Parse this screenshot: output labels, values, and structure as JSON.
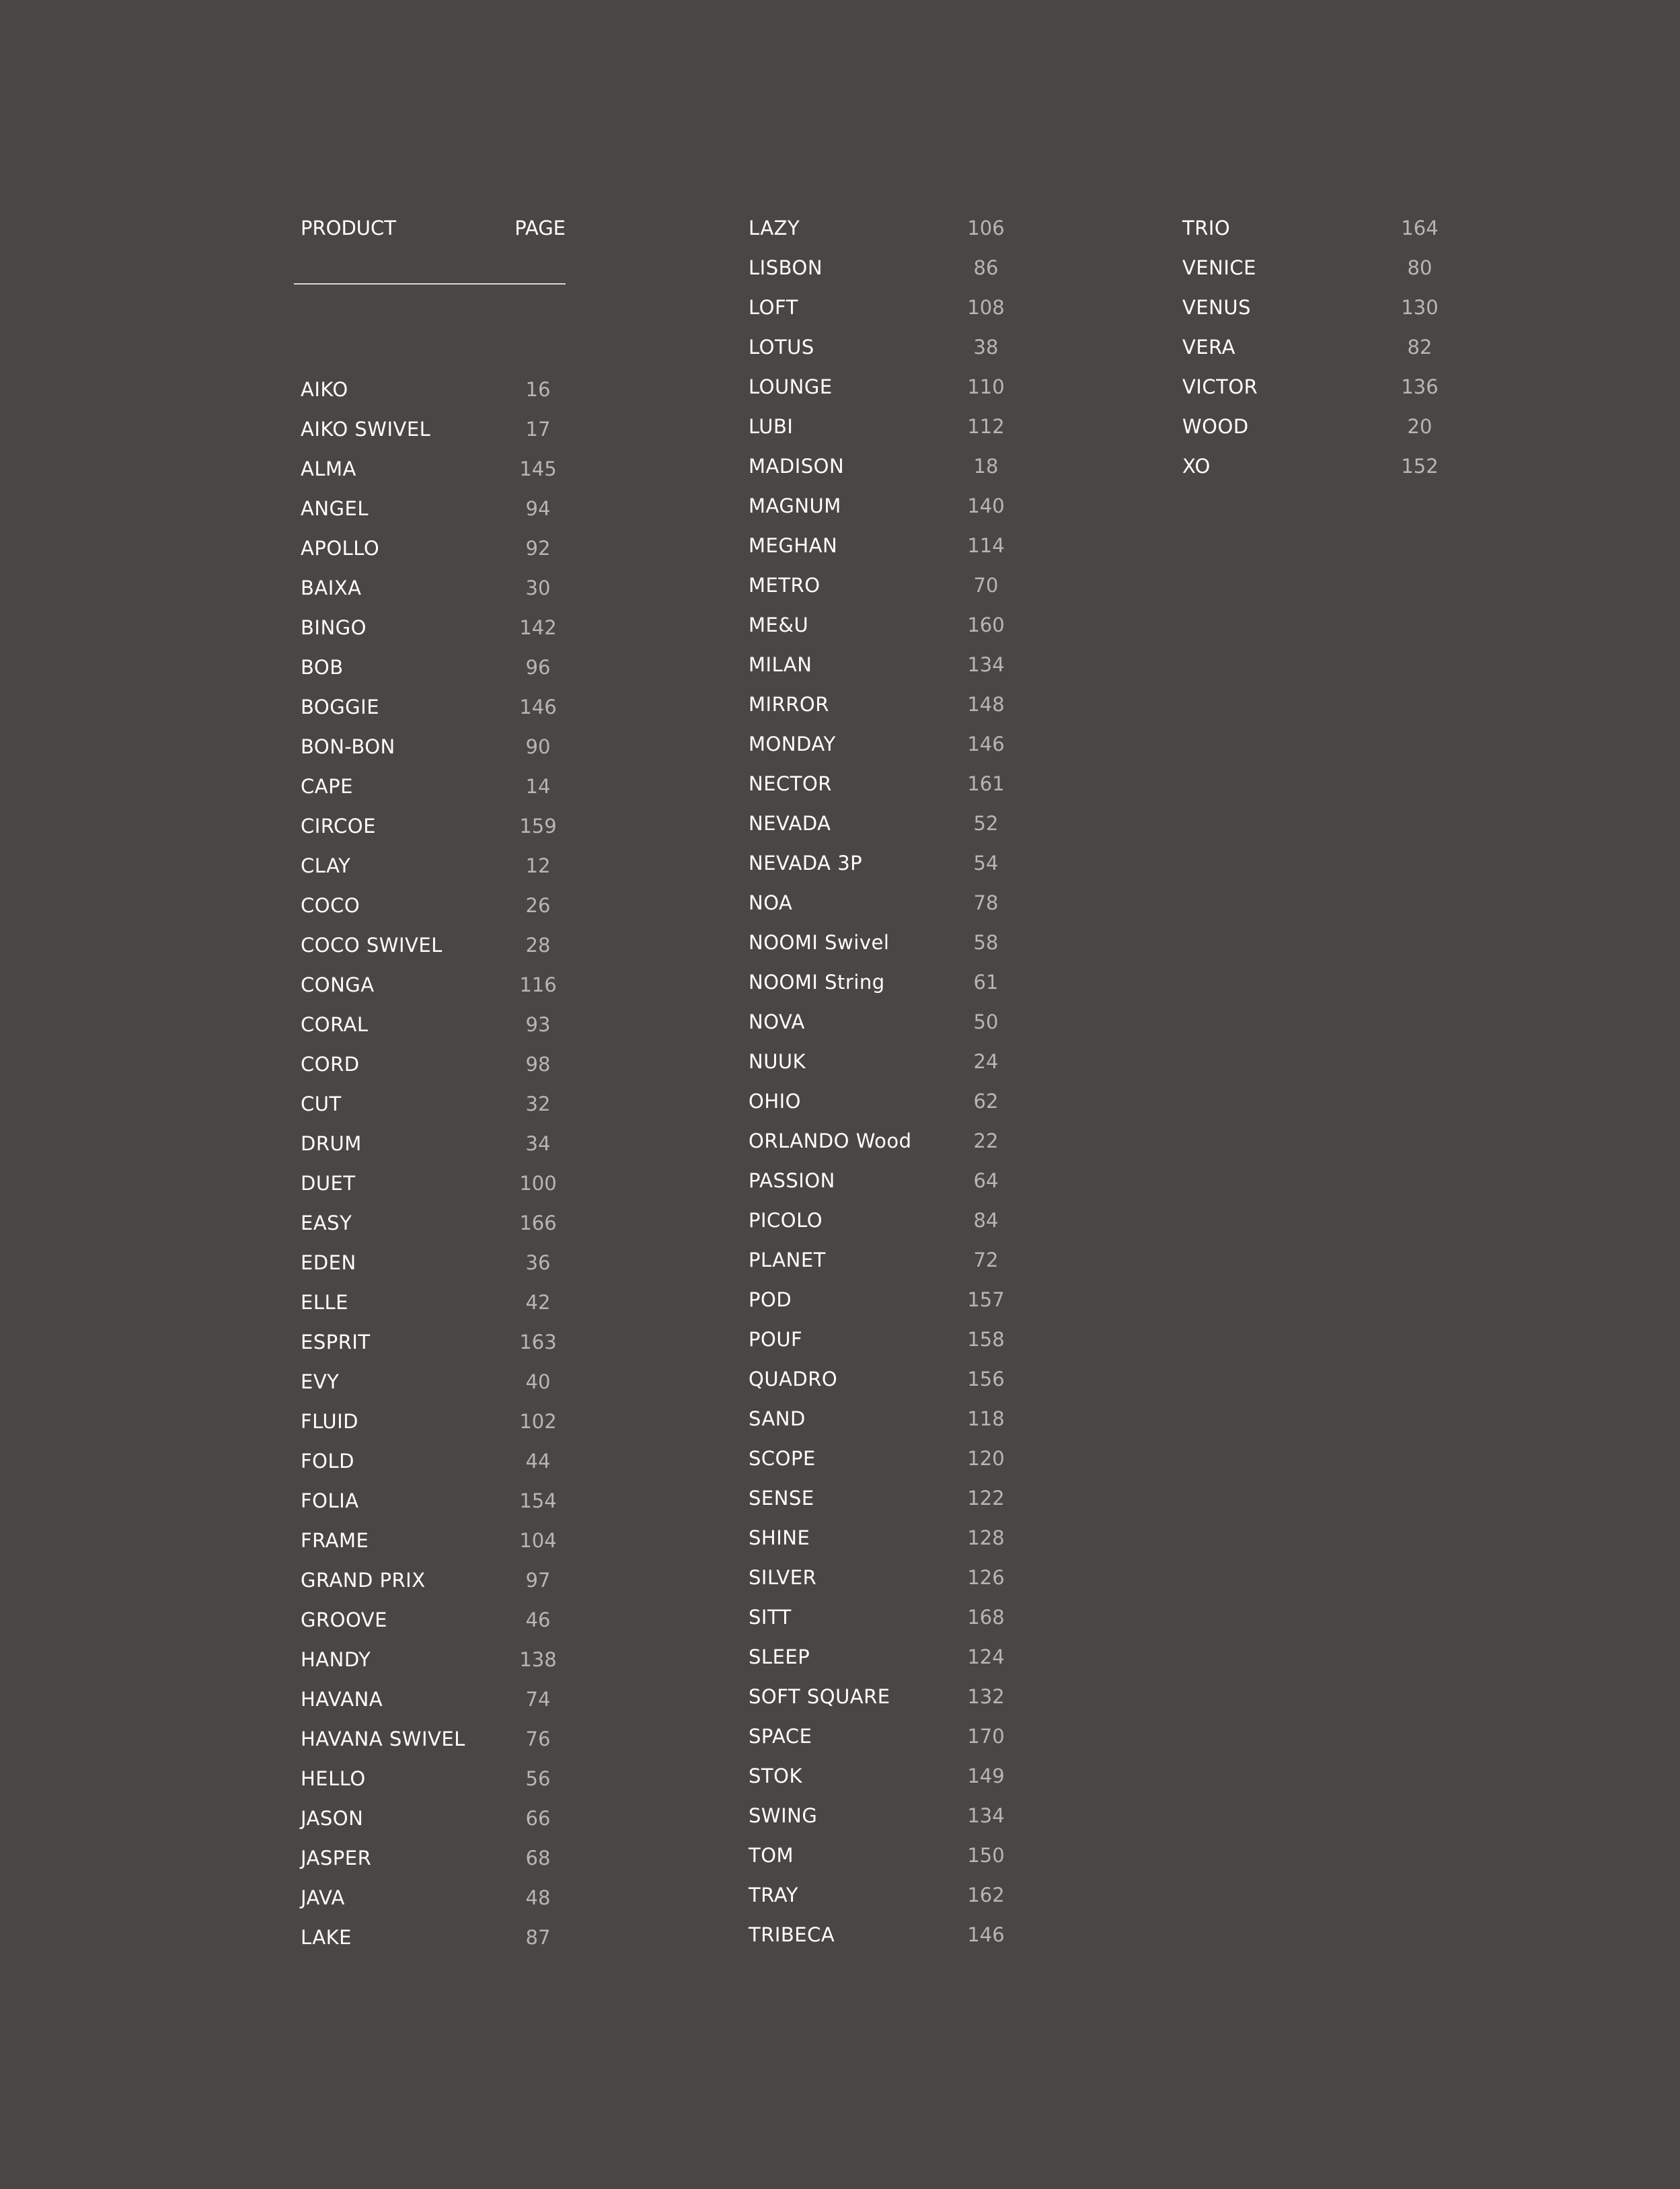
{
  "header": {
    "product_label": "PRODUCT",
    "page_label": "PAGE"
  },
  "colors": {
    "background": "#4a4644",
    "name_text": "#ffffff",
    "page_text": "#b8b5b2"
  },
  "columns": [
    [
      {
        "name": "AIKO",
        "page": "16"
      },
      {
        "name": "AIKO SWIVEL",
        "page": "17"
      },
      {
        "name": "ALMA",
        "page": "145"
      },
      {
        "name": "ANGEL",
        "page": "94"
      },
      {
        "name": "APOLLO",
        "page": "92"
      },
      {
        "name": "BAIXA",
        "page": "30"
      },
      {
        "name": "BINGO",
        "page": "142"
      },
      {
        "name": "BOB",
        "page": "96"
      },
      {
        "name": "BOGGIE",
        "page": "146"
      },
      {
        "name": "BON-BON",
        "page": "90"
      },
      {
        "name": "CAPE",
        "page": "14"
      },
      {
        "name": "CIRCOE",
        "page": "159"
      },
      {
        "name": "CLAY",
        "page": "12"
      },
      {
        "name": "COCO",
        "page": "26"
      },
      {
        "name": "COCO SWIVEL",
        "page": "28"
      },
      {
        "name": "CONGA",
        "page": "116"
      },
      {
        "name": "CORAL",
        "page": "93"
      },
      {
        "name": "CORD",
        "page": "98"
      },
      {
        "name": "CUT",
        "page": "32"
      },
      {
        "name": "DRUM",
        "page": "34"
      },
      {
        "name": "DUET",
        "page": "100"
      },
      {
        "name": "EASY",
        "page": "166"
      },
      {
        "name": "EDEN",
        "page": "36"
      },
      {
        "name": "ELLE",
        "page": "42"
      },
      {
        "name": "ESPRIT",
        "page": "163"
      },
      {
        "name": "EVY",
        "page": "40"
      },
      {
        "name": "FLUID",
        "page": "102"
      },
      {
        "name": "FOLD",
        "page": "44"
      },
      {
        "name": "FOLIA",
        "page": "154"
      },
      {
        "name": "FRAME",
        "page": "104"
      },
      {
        "name": "GRAND PRIX",
        "page": "97"
      },
      {
        "name": "GROOVE",
        "page": "46"
      },
      {
        "name": "HANDY",
        "page": "138"
      },
      {
        "name": "HAVANA",
        "page": "74"
      },
      {
        "name": "HAVANA SWIVEL",
        "page": "76"
      },
      {
        "name": "HELLO",
        "page": "56"
      },
      {
        "name": "JASON",
        "page": "66"
      },
      {
        "name": "JASPER",
        "page": "68"
      },
      {
        "name": "JAVA",
        "page": "48"
      },
      {
        "name": "LAKE",
        "page": "87"
      }
    ],
    [
      {
        "name": "LAZY",
        "page": "106"
      },
      {
        "name": "LISBON",
        "page": "86"
      },
      {
        "name": "LOFT",
        "page": "108"
      },
      {
        "name": "LOTUS",
        "page": "38"
      },
      {
        "name": "LOUNGE",
        "page": "110"
      },
      {
        "name": "LUBI",
        "page": "112"
      },
      {
        "name": "MADISON",
        "page": "18"
      },
      {
        "name": "MAGNUM",
        "page": "140"
      },
      {
        "name": "MEGHAN",
        "page": "114"
      },
      {
        "name": "METRO",
        "page": "70"
      },
      {
        "name": "ME&U",
        "page": "160"
      },
      {
        "name": "MILAN",
        "page": "134"
      },
      {
        "name": "MIRROR",
        "page": "148"
      },
      {
        "name": "MONDAY",
        "page": "146"
      },
      {
        "name": "NECTOR",
        "page": "161"
      },
      {
        "name": "NEVADA",
        "page": "52"
      },
      {
        "name": "NEVADA 3P",
        "page": "54"
      },
      {
        "name": "NOA",
        "page": "78"
      },
      {
        "name": "NOOMI Swivel",
        "page": "58"
      },
      {
        "name": "NOOMI String",
        "page": "61"
      },
      {
        "name": "NOVA",
        "page": "50"
      },
      {
        "name": "NUUK",
        "page": "24"
      },
      {
        "name": "OHIO",
        "page": "62"
      },
      {
        "name": "ORLANDO Wood",
        "page": "22"
      },
      {
        "name": "PASSION",
        "page": "64"
      },
      {
        "name": "PICOLO",
        "page": "84"
      },
      {
        "name": "PLANET",
        "page": "72"
      },
      {
        "name": "POD",
        "page": "157"
      },
      {
        "name": "POUF",
        "page": "158"
      },
      {
        "name": "QUADRO",
        "page": "156"
      },
      {
        "name": "SAND",
        "page": "118"
      },
      {
        "name": "SCOPE",
        "page": "120"
      },
      {
        "name": "SENSE",
        "page": "122"
      },
      {
        "name": "SHINE",
        "page": "128"
      },
      {
        "name": "SILVER",
        "page": "126"
      },
      {
        "name": "SITT",
        "page": "168"
      },
      {
        "name": "SLEEP",
        "page": "124"
      },
      {
        "name": "SOFT SQUARE",
        "page": "132"
      },
      {
        "name": "SPACE",
        "page": "170"
      },
      {
        "name": "STOK",
        "page": "149"
      },
      {
        "name": "SWING",
        "page": "134"
      },
      {
        "name": "TOM",
        "page": "150"
      },
      {
        "name": "TRAY",
        "page": "162"
      },
      {
        "name": "TRIBECA",
        "page": "146"
      }
    ],
    [
      {
        "name": "TRIO",
        "page": "164"
      },
      {
        "name": "VENICE",
        "page": "80"
      },
      {
        "name": "VENUS",
        "page": "130"
      },
      {
        "name": "VERA",
        "page": "82"
      },
      {
        "name": "VICTOR",
        "page": "136"
      },
      {
        "name": "WOOD",
        "page": "20"
      },
      {
        "name": "XO",
        "page": "152"
      }
    ]
  ]
}
